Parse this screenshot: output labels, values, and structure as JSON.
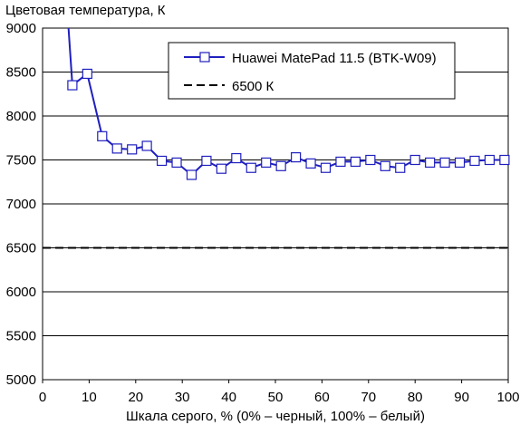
{
  "chart_data": {
    "type": "line",
    "title": "",
    "ylabel": "Цветовая температура, К",
    "xlabel": "Шкала серого, % (0% – черный, 100% – белый)",
    "xlim": [
      0,
      100
    ],
    "ylim": [
      5000,
      9000
    ],
    "x_ticks": [
      "0",
      "10",
      "20",
      "30",
      "40",
      "50",
      "60",
      "70",
      "80",
      "90",
      "100"
    ],
    "y_ticks": [
      "5000",
      "5500",
      "6000",
      "6500",
      "7000",
      "7500",
      "8000",
      "8500",
      "9000"
    ],
    "grid": "horizontal",
    "legend_position": "top-right",
    "series": [
      {
        "name": "Huawei MatePad 11.5 (BTK-W09)",
        "color": "#1f1fbf",
        "marker": "square-open",
        "x": [
          5.5,
          6.4,
          9.6,
          12.8,
          16.0,
          19.2,
          22.4,
          25.6,
          28.8,
          32.0,
          35.2,
          38.4,
          41.6,
          44.8,
          48.0,
          51.2,
          54.4,
          57.6,
          60.8,
          64.0,
          67.2,
          70.4,
          73.6,
          76.8,
          80.0,
          83.2,
          86.4,
          89.6,
          92.8,
          96.0,
          99.2
        ],
        "y": [
          9050,
          8350,
          8480,
          7770,
          7630,
          7620,
          7660,
          7490,
          7470,
          7330,
          7490,
          7400,
          7520,
          7410,
          7470,
          7430,
          7530,
          7460,
          7410,
          7480,
          7480,
          7500,
          7430,
          7410,
          7500,
          7470,
          7470,
          7470,
          7490,
          7500,
          7500
        ]
      },
      {
        "name": "6500 К",
        "color": "#000000",
        "style": "dashed",
        "x": [
          0,
          100
        ],
        "y": [
          6500,
          6500
        ]
      }
    ]
  }
}
